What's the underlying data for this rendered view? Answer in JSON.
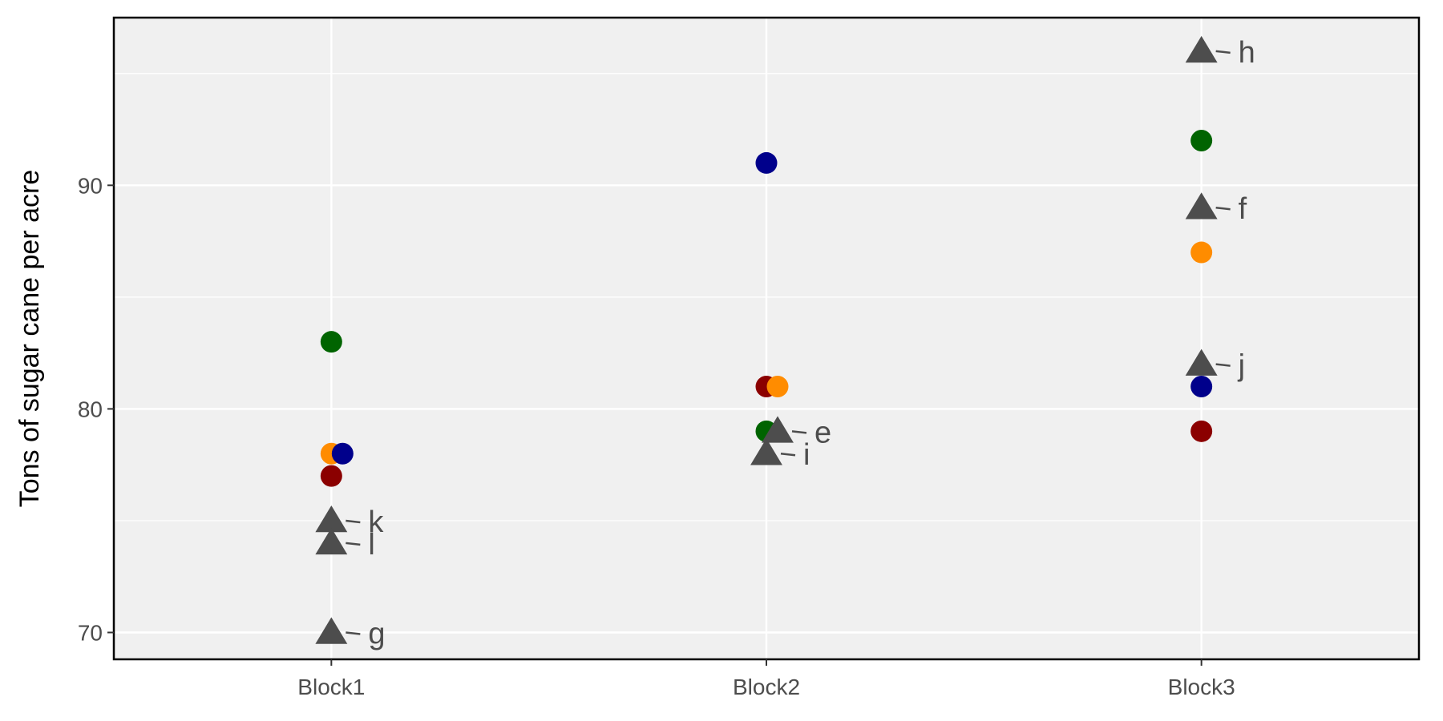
{
  "chart_data": {
    "type": "scatter",
    "title": "",
    "xlabel": "",
    "ylabel": "Tons of sugar cane per acre",
    "categories": [
      "Block1",
      "Block2",
      "Block3"
    ],
    "ylim": [
      68.8,
      97.5
    ],
    "yticks": [
      70,
      80,
      90
    ],
    "grid": true,
    "legend": "none",
    "panel_background": "#f0f0f0",
    "grid_color": "#ffffff",
    "frame_color": "#000000",
    "points": [
      {
        "category": "Block1",
        "y": 83,
        "color": "#006400",
        "shape": "circle"
      },
      {
        "category": "Block1",
        "y": 78,
        "color": "#ff8c00",
        "shape": "circle"
      },
      {
        "category": "Block1",
        "y": 78,
        "color": "#00008b",
        "shape": "circle"
      },
      {
        "category": "Block1",
        "y": 77,
        "color": "#8b0000",
        "shape": "circle"
      },
      {
        "category": "Block1",
        "y": 75,
        "color": "#4d4d4d",
        "shape": "triangle",
        "label": "k"
      },
      {
        "category": "Block1",
        "y": 74,
        "color": "#4d4d4d",
        "shape": "triangle",
        "label": "l"
      },
      {
        "category": "Block1",
        "y": 70,
        "color": "#4d4d4d",
        "shape": "triangle",
        "label": "g"
      },
      {
        "category": "Block2",
        "y": 91,
        "color": "#00008b",
        "shape": "circle"
      },
      {
        "category": "Block2",
        "y": 81,
        "color": "#8b0000",
        "shape": "circle"
      },
      {
        "category": "Block2",
        "y": 81,
        "color": "#ff8c00",
        "shape": "circle"
      },
      {
        "category": "Block2",
        "y": 79,
        "color": "#006400",
        "shape": "circle"
      },
      {
        "category": "Block2",
        "y": 79,
        "color": "#4d4d4d",
        "shape": "triangle",
        "label": "e"
      },
      {
        "category": "Block2",
        "y": 78,
        "color": "#4d4d4d",
        "shape": "triangle",
        "label": "i"
      },
      {
        "category": "Block3",
        "y": 96,
        "color": "#4d4d4d",
        "shape": "triangle",
        "label": "h"
      },
      {
        "category": "Block3",
        "y": 92,
        "color": "#006400",
        "shape": "circle"
      },
      {
        "category": "Block3",
        "y": 89,
        "color": "#4d4d4d",
        "shape": "triangle",
        "label": "f"
      },
      {
        "category": "Block3",
        "y": 87,
        "color": "#ff8c00",
        "shape": "circle"
      },
      {
        "category": "Block3",
        "y": 82,
        "color": "#4d4d4d",
        "shape": "triangle",
        "label": "j"
      },
      {
        "category": "Block3",
        "y": 81,
        "color": "#00008b",
        "shape": "circle"
      },
      {
        "category": "Block3",
        "y": 79,
        "color": "#8b0000",
        "shape": "circle"
      }
    ]
  }
}
